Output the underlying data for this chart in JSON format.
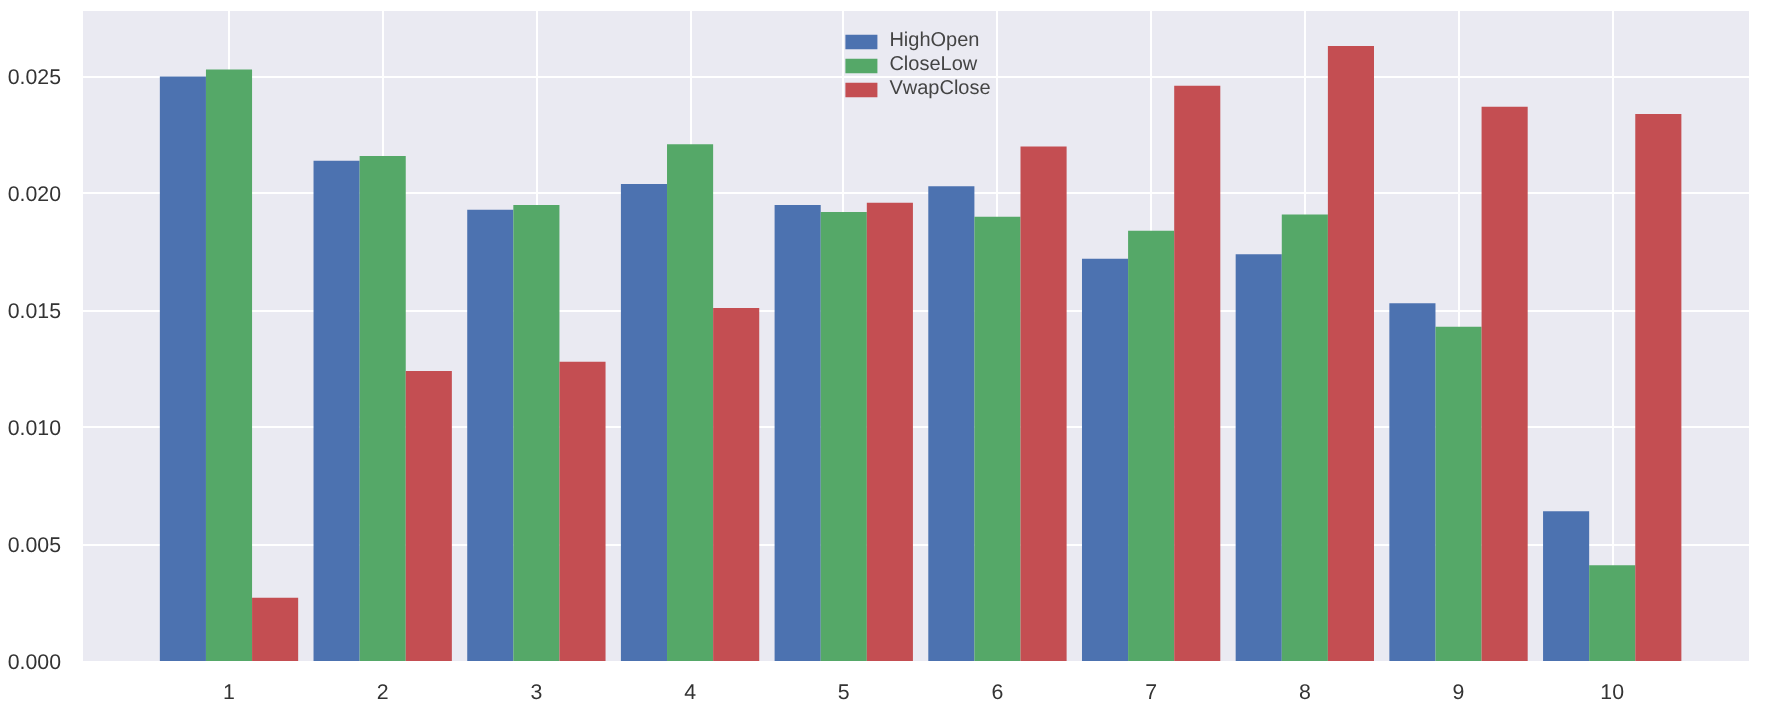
{
  "chart_data": {
    "type": "bar",
    "categories": [
      "1",
      "2",
      "3",
      "4",
      "5",
      "6",
      "7",
      "8",
      "9",
      "10"
    ],
    "series": [
      {
        "name": "HighOpen",
        "color": "#4c72b0",
        "values": [
          0.025,
          0.0214,
          0.0193,
          0.0204,
          0.0195,
          0.0203,
          0.0172,
          0.0174,
          0.0153,
          0.0064
        ]
      },
      {
        "name": "CloseLow",
        "color": "#55a868",
        "values": [
          0.0253,
          0.0216,
          0.0195,
          0.0221,
          0.0192,
          0.019,
          0.0184,
          0.0191,
          0.0143,
          0.0041
        ]
      },
      {
        "name": "VwapClose",
        "color": "#c44e52",
        "values": [
          0.0027,
          0.0124,
          0.0128,
          0.0151,
          0.0196,
          0.022,
          0.0246,
          0.0263,
          0.0237,
          0.0234
        ]
      }
    ],
    "ylim": [
      0,
      0.0278
    ],
    "yticks": [
      {
        "value": 0,
        "label": "0.000"
      },
      {
        "value": 0.005,
        "label": "0.005"
      },
      {
        "value": 0.01,
        "label": "0.010"
      },
      {
        "value": 0.015,
        "label": "0.015"
      },
      {
        "value": 0.02,
        "label": "0.020"
      },
      {
        "value": 0.025,
        "label": "0.025"
      }
    ],
    "grid": true,
    "legend": "top"
  }
}
